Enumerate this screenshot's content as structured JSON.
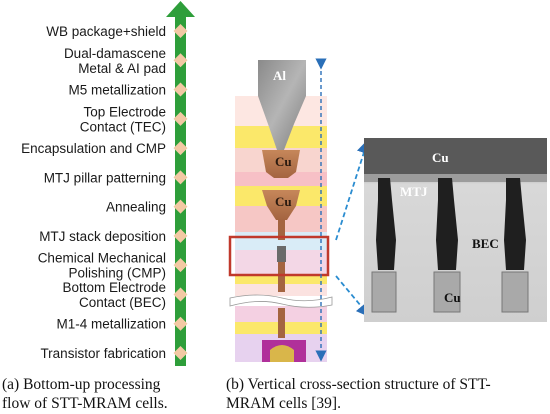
{
  "flow_steps": [
    {
      "lines": [
        "WB package+shield"
      ]
    },
    {
      "lines": [
        "Dual-damascene",
        "Metal & AI pad"
      ]
    },
    {
      "lines": [
        "M5 metallization"
      ]
    },
    {
      "lines": [
        "Top Electrode",
        "Contact (TEC)"
      ]
    },
    {
      "lines": [
        "Encapsulation and CMP"
      ]
    },
    {
      "lines": [
        "MTJ pillar patterning"
      ]
    },
    {
      "lines": [
        "Annealing"
      ]
    },
    {
      "lines": [
        "MTJ stack deposition"
      ]
    },
    {
      "lines": [
        "Chemical Mechanical",
        "Polishing (CMP)"
      ]
    },
    {
      "lines": [
        "Bottom Electrode",
        "Contact (BEC)"
      ]
    },
    {
      "lines": [
        "M1-4 metallization"
      ]
    },
    {
      "lines": [
        "Transistor fabrication"
      ]
    }
  ],
  "cross_section_labels": {
    "al": "Al",
    "cu_upper": "Cu",
    "cu_lower": "Cu"
  },
  "tem_labels": {
    "cu_top": "Cu",
    "mtj": "MTJ",
    "bec": "BEC",
    "cu_bottom": "Cu"
  },
  "captions": {
    "a": [
      "(a)  Bottom-up  processing",
      "flow of STT-MRAM cells."
    ],
    "b": [
      "(b) Vertical cross-section structure of STT-",
      "MRAM cells [39]."
    ]
  },
  "colors": {
    "flow_arrow": "#2e9e3a",
    "step_marker": "#f3c9a4",
    "highlight_box": "#c0392b",
    "dimension_arrow": "#2a6fb8"
  }
}
